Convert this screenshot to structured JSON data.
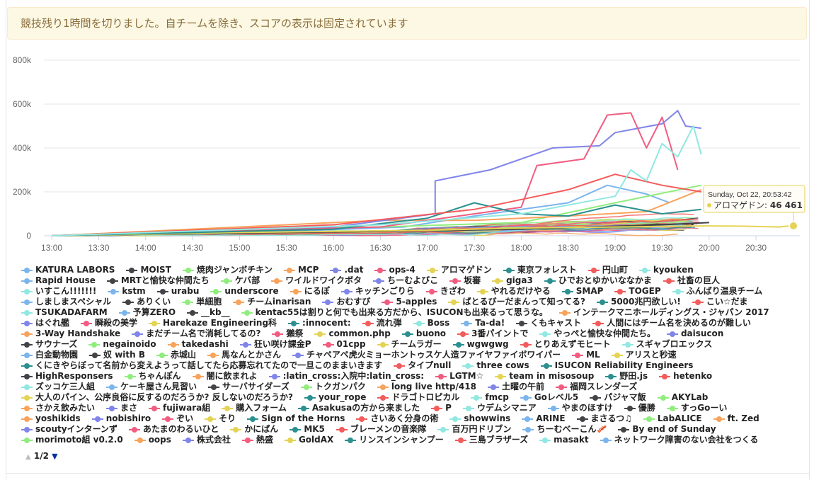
{
  "banner": {
    "text": "競技残り1時間を切りました。自チームを除き、スコアの表示は固定されています"
  },
  "tooltip": {
    "time": "Sunday, Oct 22, 20:53:42",
    "team": "アロマゲドン",
    "value": "46 461"
  },
  "pager": {
    "text": "1/2",
    "up_icon": "triangle-up-icon",
    "down_icon": "triangle-down-icon"
  },
  "chart_data": {
    "type": "line",
    "title": "",
    "xlabel": "",
    "ylabel": "",
    "ylim": [
      0,
      800000
    ],
    "y_ticks": [
      "0",
      "200k",
      "400k",
      "600k",
      "800k"
    ],
    "y_tick_values": [
      0,
      200000,
      400000,
      600000,
      800000
    ],
    "x_ticks": [
      "13:00",
      "13:30",
      "14:00",
      "14:30",
      "15:00",
      "15:30",
      "16:00",
      "16:30",
      "17:00",
      "17:30",
      "18:00",
      "18:30",
      "19:00",
      "19:30",
      "20:00",
      "20:30"
    ],
    "x_range": [
      "12:55",
      "20:58"
    ],
    "grid": true,
    "legend_position": "bottom",
    "series": [
      {
        "name": "KATURA LABORS",
        "color": "#7cb5ec",
        "x": [
          "13:00",
          "15:30",
          "16:45",
          "17:30",
          "18:00",
          "18:30",
          "18:55",
          "19:20",
          "19:35"
        ],
        "values": [
          0,
          20000,
          40000,
          90000,
          120000,
          150000,
          230000,
          190000,
          150000
        ]
      },
      {
        "name": "MOIST",
        "color": "#434348",
        "x": [
          "13:00",
          "14:30",
          "16:30",
          "18:00",
          "19:30",
          "20:00"
        ],
        "values": [
          0,
          10000,
          20000,
          30000,
          50000,
          60000
        ]
      },
      {
        "name": "焼肉ジャンボチキン",
        "color": "#90ed7d",
        "x": [
          "13:00",
          "15:00",
          "16:30",
          "18:00",
          "19:00",
          "19:55"
        ],
        "values": [
          0,
          30000,
          40000,
          60000,
          150000,
          230000
        ]
      },
      {
        "name": "MCP",
        "color": "#f7a35c",
        "x": [
          "13:00",
          "15:00",
          "16:30",
          "17:30",
          "18:30",
          "19:20",
          "19:55"
        ],
        "values": [
          0,
          40000,
          70000,
          70000,
          90000,
          110000,
          210000
        ]
      },
      {
        "name": ".dat",
        "color": "#8085e9",
        "x": [
          "13:00",
          "16:00",
          "17:05",
          "17:05",
          "17:40",
          "18:20",
          "18:50",
          "19:00",
          "19:30",
          "19:40",
          "19:45",
          "19:55"
        ],
        "values": [
          0,
          40000,
          100000,
          250000,
          300000,
          400000,
          410000,
          470000,
          510000,
          570000,
          500000,
          490000
        ]
      },
      {
        "name": "ops-4",
        "color": "#f15c80",
        "x": [
          "13:00",
          "16:30",
          "17:20",
          "18:00",
          "18:10",
          "18:40",
          "18:55",
          "19:10",
          "19:20",
          "19:30",
          "19:40"
        ],
        "values": [
          0,
          40000,
          90000,
          130000,
          320000,
          350000,
          550000,
          560000,
          400000,
          540000,
          300000
        ]
      },
      {
        "name": "アロマゲドン",
        "color": "#e4d354",
        "x": [
          "13:00",
          "15:00",
          "17:00",
          "18:00",
          "19:00",
          "19:30",
          "20:00",
          "20:20",
          "20:45",
          "20:53"
        ],
        "values": [
          0,
          15000,
          25000,
          35000,
          40000,
          43000,
          45000,
          44000,
          40000,
          46461
        ]
      },
      {
        "name": "東京フォレスト",
        "color": "#2b908f",
        "x": [
          "13:00",
          "16:00",
          "17:00",
          "17:30",
          "18:00",
          "18:30",
          "19:00",
          "19:30",
          "19:55"
        ],
        "values": [
          0,
          30000,
          80000,
          150000,
          100000,
          90000,
          140000,
          100000,
          120000
        ]
      },
      {
        "name": "円山町",
        "color": "#f45b5b",
        "x": [
          "13:00",
          "16:00",
          "17:30",
          "18:10",
          "18:30",
          "19:00",
          "19:30",
          "19:55"
        ],
        "values": [
          0,
          50000,
          120000,
          180000,
          210000,
          280000,
          230000,
          200000
        ]
      },
      {
        "name": "kyouken",
        "color": "#91e8e1",
        "x": [
          "13:00",
          "16:30",
          "18:00",
          "19:00",
          "19:10",
          "19:20",
          "19:30",
          "19:40",
          "19:50",
          "19:55"
        ],
        "values": [
          0,
          50000,
          100000,
          180000,
          300000,
          250000,
          420000,
          360000,
          500000,
          370000
        ]
      }
    ]
  },
  "legend": [
    {
      "name": "KATURA LABORS",
      "color": "#7cb5ec"
    },
    {
      "name": "MOIST",
      "color": "#434348"
    },
    {
      "name": "焼肉ジャンボチキン",
      "color": "#90ed7d"
    },
    {
      "name": "MCP",
      "color": "#f7a35c"
    },
    {
      "name": ".dat",
      "color": "#8085e9"
    },
    {
      "name": "ops-4",
      "color": "#f15c80"
    },
    {
      "name": "アロマゲドン",
      "color": "#e4d354"
    },
    {
      "name": "東京フォレスト",
      "color": "#2b908f"
    },
    {
      "name": "円山町",
      "color": "#f45b5b"
    },
    {
      "name": "kyouken",
      "color": "#91e8e1"
    },
    {
      "name": "Rapid House",
      "color": "#7cb5ec"
    },
    {
      "name": "MRTと愉快な仲間たち",
      "color": "#434348"
    },
    {
      "name": "ケバ部",
      "color": "#90ed7d"
    },
    {
      "name": "ワイルドワイクボタ",
      "color": "#f7a35c"
    },
    {
      "name": "ちーむよびこ",
      "color": "#8085e9"
    },
    {
      "name": "坂審",
      "color": "#f15c80"
    },
    {
      "name": "giga3",
      "color": "#e4d354"
    },
    {
      "name": "ひでおとゆかいななかま",
      "color": "#2b908f"
    },
    {
      "name": "社畜の巨人",
      "color": "#f45b5b"
    },
    {
      "name": "いすこん!!!!!!!",
      "color": "#91e8e1"
    },
    {
      "name": "kstm",
      "color": "#7cb5ec"
    },
    {
      "name": "urabu",
      "color": "#434348"
    },
    {
      "name": "underscore",
      "color": "#90ed7d"
    },
    {
      "name": "にるぽ",
      "color": "#f7a35c"
    },
    {
      "name": "キッチンごりら",
      "color": "#8085e9"
    },
    {
      "name": "きざわ",
      "color": "#f15c80"
    },
    {
      "name": "やれるだけやる",
      "color": "#e4d354"
    },
    {
      "name": "SMAP",
      "color": "#2b908f"
    },
    {
      "name": "TOGEP",
      "color": "#f45b5b"
    },
    {
      "name": "ふんばり温泉チーム",
      "color": "#91e8e1"
    },
    {
      "name": "しましまスペシャル",
      "color": "#7cb5ec"
    },
    {
      "name": "ありくい",
      "color": "#434348"
    },
    {
      "name": "単細胞",
      "color": "#90ed7d"
    },
    {
      "name": "チームinarisan",
      "color": "#f7a35c"
    },
    {
      "name": "おむすび",
      "color": "#8085e9"
    },
    {
      "name": "5-apples",
      "color": "#f15c80"
    },
    {
      "name": "ばとるびーだまんって知ってる?",
      "color": "#e4d354"
    },
    {
      "name": "5000兆円欲しい!",
      "color": "#2b908f"
    },
    {
      "name": "こい☆だま",
      "color": "#f45b5b"
    },
    {
      "name": "TSUKADAFARM",
      "color": "#91e8e1"
    },
    {
      "name": "予算ZERO",
      "color": "#7cb5ec"
    },
    {
      "name": "__kb__",
      "color": "#434348"
    },
    {
      "name": "kentac55は割りと何でも出来る方だから、ISUCONも出来るって思うな。",
      "color": "#90ed7d"
    },
    {
      "name": "インテークマニホールディングス・ジャパン 2017",
      "color": "#f7a35c"
    },
    {
      "name": "はぐれ艦",
      "color": "#8085e9"
    },
    {
      "name": "瞬殺の美学",
      "color": "#f15c80"
    },
    {
      "name": "Harekaze Engineering科",
      "color": "#e4d354"
    },
    {
      "name": ":innocent:",
      "color": "#2b908f"
    },
    {
      "name": "流れ弾",
      "color": "#f45b5b"
    },
    {
      "name": "Boss",
      "color": "#91e8e1"
    },
    {
      "name": "Ta-da!",
      "color": "#7cb5ec"
    },
    {
      "name": "くもキャスト",
      "color": "#434348"
    },
    {
      "name": "人間にはチーム名を決めるのが難しい",
      "color": "#f45b5b"
    },
    {
      "name": "3-Way Handshake",
      "color": "#f7a35c"
    },
    {
      "name": "まだチーム名で消耗してるの?",
      "color": "#8085e9"
    },
    {
      "name": "獺祭",
      "color": "#f15c80"
    },
    {
      "name": "common.php",
      "color": "#e4d354"
    },
    {
      "name": "buono",
      "color": "#2b908f"
    },
    {
      "name": "3番パイントで",
      "color": "#f45b5b"
    },
    {
      "name": "やっぺと愉快な仲間たち。",
      "color": "#91e8e1"
    },
    {
      "name": "daisucon",
      "color": "#8085e9"
    },
    {
      "name": "サウナーズ",
      "color": "#434348"
    },
    {
      "name": "negainoido",
      "color": "#90ed7d"
    },
    {
      "name": "takedashi",
      "color": "#f7a35c"
    },
    {
      "name": "狂い咲け課金P",
      "color": "#8085e9"
    },
    {
      "name": "01cpp",
      "color": "#f15c80"
    },
    {
      "name": "チームラガー",
      "color": "#e4d354"
    },
    {
      "name": "wgwgwg",
      "color": "#2b908f"
    },
    {
      "name": "とりあえずモヒート",
      "color": "#f45b5b"
    },
    {
      "name": "スギャブロエックス",
      "color": "#91e8e1"
    },
    {
      "name": "白金動物園",
      "color": "#7cb5ec"
    },
    {
      "name": "奴 with B",
      "color": "#434348"
    },
    {
      "name": "赤城山",
      "color": "#90ed7d"
    },
    {
      "name": "馬なんとかさん",
      "color": "#f7a35c"
    },
    {
      "name": "チャペアペ虎火ミョーホントゥスケ人造ファイヤファイボワイパー",
      "color": "#8085e9"
    },
    {
      "name": "ML",
      "color": "#f15c80"
    },
    {
      "name": "アリスと秒速",
      "color": "#e4d354"
    },
    {
      "name": "くにきやらぼって名前から変えようって話してたら応募忘れてたので一旦このままいきます",
      "color": "#2b908f"
    },
    {
      "name": "タイプnull",
      "color": "#f45b5b"
    },
    {
      "name": "three cows",
      "color": "#91e8e1"
    },
    {
      "name": "ISUCON Reliability Engineers",
      "color": "#2b908f"
    },
    {
      "name": "HighResponsers",
      "color": "#434348"
    },
    {
      "name": "ちゃんぽん",
      "color": "#90ed7d"
    },
    {
      "name": "闇に飲まれよ",
      "color": "#f7a35c"
    },
    {
      "name": ":latin_cross:入院中:latin_cross:",
      "color": "#8085e9"
    },
    {
      "name": "LGTM☆",
      "color": "#f15c80"
    },
    {
      "name": "team in misosoup",
      "color": "#e4d354"
    },
    {
      "name": "野田.js",
      "color": "#2b908f"
    },
    {
      "name": "hetenko",
      "color": "#f45b5b"
    },
    {
      "name": "ズッコケ三人組",
      "color": "#91e8e1"
    },
    {
      "name": "ケーキ屋さん見習い",
      "color": "#7cb5ec"
    },
    {
      "name": "サーバサイダーズ",
      "color": "#434348"
    },
    {
      "name": "トクガンパク",
      "color": "#90ed7d"
    },
    {
      "name": "long live http/418",
      "color": "#f7a35c"
    },
    {
      "name": "土曜の午前",
      "color": "#8085e9"
    },
    {
      "name": "福岡スレンダーズ",
      "color": "#f15c80"
    },
    {
      "name": "大人のパイン、公序良俗に反するのだろうか? 反しないのだろうか?",
      "color": "#e4d354"
    },
    {
      "name": "your_rope",
      "color": "#2b908f"
    },
    {
      "name": "ドラゴトロピカル",
      "color": "#f45b5b"
    },
    {
      "name": "fmcp",
      "color": "#91e8e1"
    },
    {
      "name": "Goレベル5",
      "color": "#7cb5ec"
    },
    {
      "name": "パジャマ飯",
      "color": "#434348"
    },
    {
      "name": "AKYLab",
      "color": "#90ed7d"
    },
    {
      "name": "さかえ飲みたい",
      "color": "#f7a35c"
    },
    {
      "name": "まさ",
      "color": "#8085e9"
    },
    {
      "name": "fujiwara組",
      "color": "#f15c80"
    },
    {
      "name": "購入フォーム",
      "color": "#e4d354"
    },
    {
      "name": "Asakusaの方から来ました",
      "color": "#2b908f"
    },
    {
      "name": "P",
      "color": "#f45b5b"
    },
    {
      "name": "ウデムシマニア",
      "color": "#91e8e1"
    },
    {
      "name": "やまのほすけ",
      "color": "#7cb5ec"
    },
    {
      "name": "優勝",
      "color": "#434348"
    },
    {
      "name": "すっGoーい",
      "color": "#90ed7d"
    },
    {
      "name": "yoshikids",
      "color": "#f7a35c"
    },
    {
      "name": "nobishiro",
      "color": "#8085e9"
    },
    {
      "name": "ぞい",
      "color": "#f15c80"
    },
    {
      "name": "そり",
      "color": "#e4d354"
    },
    {
      "name": "Sign of the Horns",
      "color": "#2b908f"
    },
    {
      "name": "さいあく分身の術",
      "color": "#f45b5b"
    },
    {
      "name": "showwins",
      "color": "#91e8e1"
    },
    {
      "name": "ARINE",
      "color": "#7cb5ec"
    },
    {
      "name": "まさるつ♫",
      "color": "#434348"
    },
    {
      "name": "LabALICE",
      "color": "#90ed7d"
    },
    {
      "name": "ft. Zed",
      "color": "#f7a35c"
    },
    {
      "name": "scoutyインターンず",
      "color": "#8085e9"
    },
    {
      "name": "あたまのわるいひと",
      "color": "#f15c80"
    },
    {
      "name": "かにぱん",
      "color": "#e4d354"
    },
    {
      "name": "MK5",
      "color": "#2b908f"
    },
    {
      "name": "ブレーメンの音楽隊",
      "color": "#f45b5b"
    },
    {
      "name": "百万円ドリブン",
      "color": "#91e8e1"
    },
    {
      "name": "ちーむべーこん🥓",
      "color": "#7cb5ec"
    },
    {
      "name": "By end of Sunday",
      "color": "#434348"
    },
    {
      "name": "morimoto組 v0.2.0",
      "color": "#90ed7d"
    },
    {
      "name": "oops",
      "color": "#f7a35c"
    },
    {
      "name": "株式会社",
      "color": "#8085e9"
    },
    {
      "name": "熱盛",
      "color": "#f15c80"
    },
    {
      "name": "GoldAX",
      "color": "#e4d354"
    },
    {
      "name": "リンスインシャンプー",
      "color": "#2b908f"
    },
    {
      "name": "三島ブラザーズ",
      "color": "#f45b5b"
    },
    {
      "name": "masakt",
      "color": "#91e8e1"
    },
    {
      "name": "ネットワーク障害のない会社をつくる",
      "color": "#7cb5ec"
    }
  ]
}
